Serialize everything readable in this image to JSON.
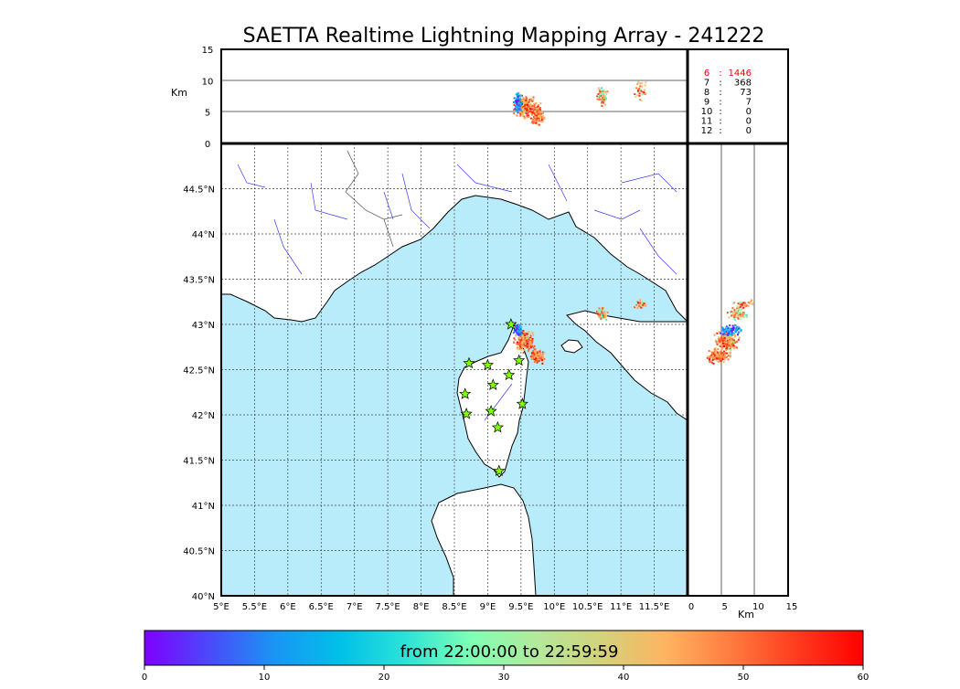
{
  "chart_data": {
    "type": "scatter",
    "title": "SAETTA Realtime Lightning Mapping Array - 241222",
    "map": {
      "lon_range": [
        5.0,
        12.0
      ],
      "lat_range": [
        40.0,
        45.0
      ],
      "lon_ticks": [
        "5°E",
        "5.5°E",
        "6°E",
        "6.5°E",
        "7°E",
        "7.5°E",
        "8°E",
        "8.5°E",
        "9°E",
        "9.5°E",
        "10°E",
        "10.5°E",
        "11°E",
        "11.5°E"
      ],
      "lat_ticks": [
        "40°N",
        "40.5°N",
        "41°N",
        "41.5°N",
        "42°N",
        "42.5°N",
        "43°N",
        "43.5°N",
        "44°N",
        "44.5°N"
      ],
      "grid": true,
      "land_color": "#ffffff",
      "sea_color": "#b8ecfb",
      "stations": [
        {
          "lon": 9.35,
          "lat": 43.0
        },
        {
          "lon": 8.72,
          "lat": 42.57
        },
        {
          "lon": 9.0,
          "lat": 42.55
        },
        {
          "lon": 9.47,
          "lat": 42.6
        },
        {
          "lon": 9.32,
          "lat": 42.44
        },
        {
          "lon": 9.08,
          "lat": 42.33
        },
        {
          "lon": 8.66,
          "lat": 42.23
        },
        {
          "lon": 8.68,
          "lat": 42.01
        },
        {
          "lon": 9.05,
          "lat": 42.04
        },
        {
          "lon": 9.52,
          "lat": 42.12
        },
        {
          "lon": 9.15,
          "lat": 41.86
        },
        {
          "lon": 9.17,
          "lat": 41.38
        }
      ],
      "station_color": "#7fff00"
    },
    "altitude_panel": {
      "ylabel": "Km",
      "y_ticks": [
        "0",
        "5",
        "10",
        "15"
      ],
      "ylim": [
        0,
        15
      ]
    },
    "side_panel": {
      "xlabel": "Km",
      "x_ticks": [
        "0",
        "5",
        "10",
        "15"
      ],
      "xlim": [
        0,
        15
      ]
    },
    "station_counts": [
      {
        "stations": "6",
        "sep": ":",
        "count": "1446",
        "highlight": true
      },
      {
        "stations": "7",
        "sep": ":",
        "count": "368",
        "highlight": false
      },
      {
        "stations": "8",
        "sep": ":",
        "count": "73",
        "highlight": false
      },
      {
        "stations": "9",
        "sep": ":",
        "count": "7",
        "highlight": false
      },
      {
        "stations": "10",
        "sep": ":",
        "count": "0",
        "highlight": false
      },
      {
        "stations": "11",
        "sep": ":",
        "count": "0",
        "highlight": false
      },
      {
        "stations": "12",
        "sep": ":",
        "count": "0",
        "highlight": false
      }
    ],
    "colorbar": {
      "label": "from 22:00:00 to 22:59:59",
      "range": [
        0,
        60
      ],
      "ticks": [
        "0",
        "10",
        "20",
        "30",
        "40",
        "50",
        "60"
      ],
      "colormap": [
        "#7f00ff",
        "#4a4afb",
        "#1996f3",
        "#00c0e8",
        "#2ce3d8",
        "#7fffb4",
        "#b3e99b",
        "#d4d27b",
        "#ffb360",
        "#ff7a3e",
        "#ff3a1e",
        "#ff0000"
      ]
    },
    "lightning_clusters": [
      {
        "lon": 9.55,
        "lat": 42.82,
        "alt": 5.8,
        "spread_lon": 0.18,
        "spread_lat": 0.14,
        "n": 260,
        "tmin": 35,
        "tmax": 60
      },
      {
        "lon": 9.45,
        "lat": 42.93,
        "alt": 6.5,
        "spread_lon": 0.08,
        "spread_lat": 0.08,
        "n": 90,
        "tmin": 0,
        "tmax": 20
      },
      {
        "lon": 9.75,
        "lat": 42.65,
        "alt": 4.6,
        "spread_lon": 0.12,
        "spread_lat": 0.1,
        "n": 140,
        "tmin": 40,
        "tmax": 60
      },
      {
        "lon": 10.72,
        "lat": 43.12,
        "alt": 7.5,
        "spread_lon": 0.1,
        "spread_lat": 0.08,
        "n": 60,
        "tmin": 20,
        "tmax": 55
      },
      {
        "lon": 11.3,
        "lat": 43.22,
        "alt": 8.5,
        "spread_lon": 0.12,
        "spread_lat": 0.06,
        "n": 30,
        "tmin": 30,
        "tmax": 60
      }
    ]
  }
}
